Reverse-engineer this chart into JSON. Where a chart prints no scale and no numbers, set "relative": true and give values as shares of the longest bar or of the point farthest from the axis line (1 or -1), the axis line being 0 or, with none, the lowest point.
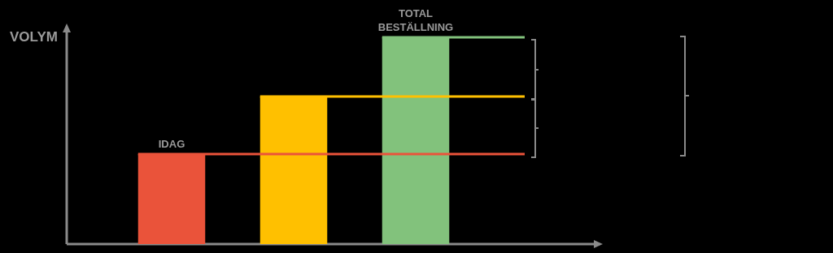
{
  "chart_data": {
    "type": "bar",
    "annotations": [
      "VOLYM"
    ],
    "relative": true,
    "categories": [
      "IDAG",
      null,
      "TOTAL BESTÄLLNING"
    ],
    "values": [
      0.435,
      0.714,
      1
    ],
    "colors": [
      "#ea533a",
      "#ffc000",
      "#82c27c"
    ],
    "ref_lines": [
      {
        "axis": "y",
        "value": 1,
        "color": "#82c27c"
      },
      {
        "axis": "y",
        "value": 0.714,
        "color": "#ffc000"
      },
      {
        "axis": "y",
        "value": 0.435,
        "color": "#ea533a"
      }
    ]
  }
}
